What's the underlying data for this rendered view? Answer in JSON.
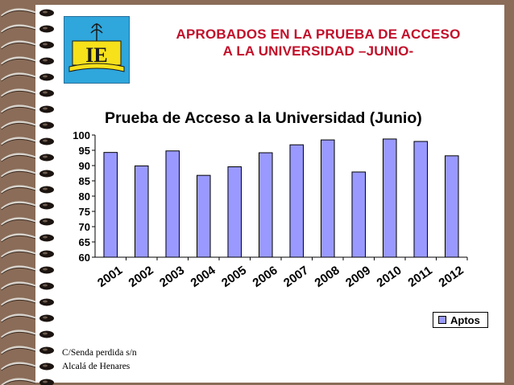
{
  "slide": {
    "title_line1": "APROBADOS EN LA PRUEBA DE ACCESO",
    "title_line2": "A LA UNIVERSIDAD –JUNIO-",
    "logo_text": "IE",
    "footer_line1": "C/Senda perdida s/n",
    "footer_line2": "Alcalá de Henares"
  },
  "colors": {
    "bar_fill": "#9999ff",
    "title_red": "#c20f2a",
    "logo_bg": "#2fa6dc",
    "logo_text": "#f6e11b"
  },
  "chart_data": {
    "type": "bar",
    "title": "Prueba de Acceso a la Universidad  (Junio)",
    "categories": [
      "2001",
      "2002",
      "2003",
      "2004",
      "2005",
      "2006",
      "2007",
      "2008",
      "2009",
      "2010",
      "2011",
      "2012"
    ],
    "series": [
      {
        "name": "Aptos",
        "values": [
          94.3,
          89.9,
          94.8,
          86.8,
          89.6,
          94.2,
          96.8,
          98.4,
          87.9,
          98.7,
          97.9,
          93.2
        ]
      }
    ],
    "ylim": [
      60,
      100
    ],
    "yticks": [
      60,
      65,
      70,
      75,
      80,
      85,
      90,
      95,
      100
    ],
    "grid": false,
    "legend_position": "bottom-right"
  }
}
